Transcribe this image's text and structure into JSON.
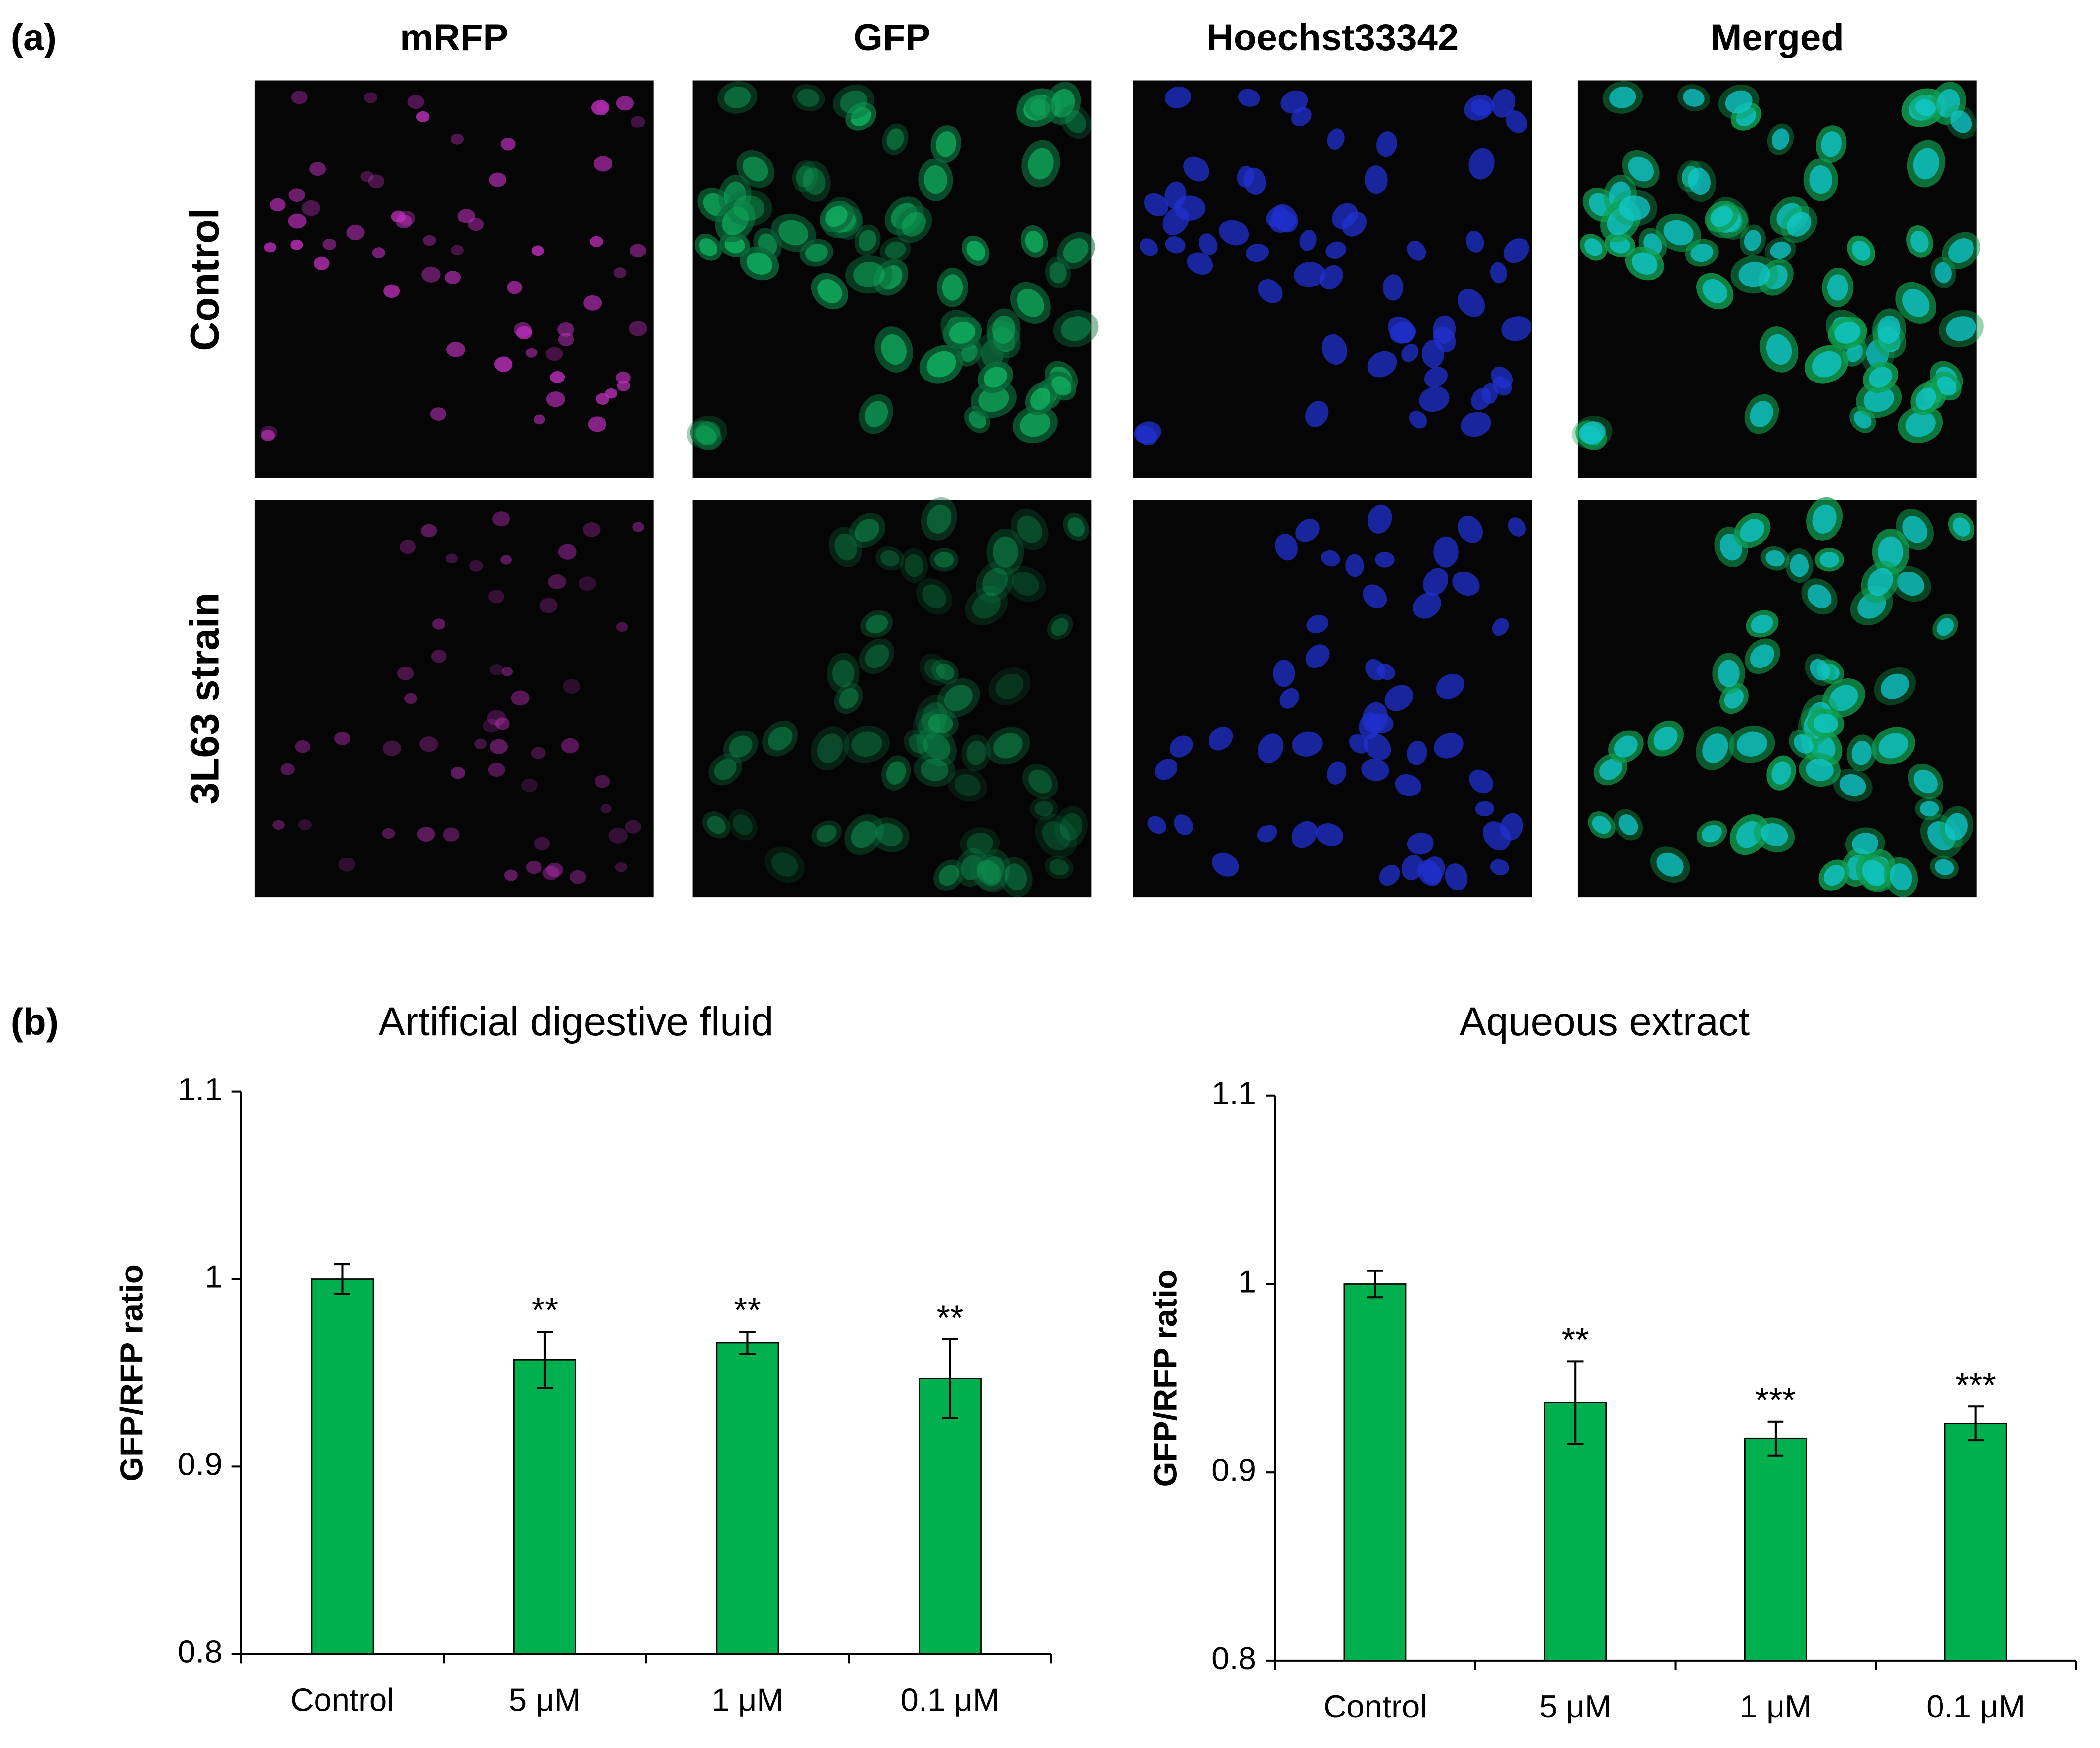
{
  "panel_a": {
    "label": "(a)",
    "columns": [
      "mRFP",
      "GFP",
      "Hoechst33342",
      "Merged"
    ],
    "rows": [
      "Control",
      "3L63 strain"
    ]
  },
  "panel_b": {
    "label": "(b)"
  },
  "chart_data": [
    {
      "type": "bar",
      "title": "Artificial digestive fluid",
      "y_label": "GFP/RFP ratio",
      "categories": [
        "Control",
        "5 μM",
        "1 μM",
        "0.1 μM"
      ],
      "values": [
        1.0,
        0.957,
        0.966,
        0.947
      ],
      "errors": [
        0.008,
        0.015,
        0.006,
        0.021
      ],
      "annotations": [
        null,
        "**",
        "**",
        "**"
      ],
      "color": "#00b04f",
      "ylim": [
        0.8,
        1.1
      ],
      "yticks": [
        0.8,
        0.9,
        1,
        1.1
      ]
    },
    {
      "type": "bar",
      "title": "Aqueous extract",
      "y_label": "GFP/RFP ratio",
      "categories": [
        "Control",
        "5 μM",
        "1 μM",
        "0.1 μM"
      ],
      "values": [
        1.0,
        0.937,
        0.918,
        0.926
      ],
      "errors": [
        0.007,
        0.022,
        0.009,
        0.009
      ],
      "annotations": [
        null,
        "**",
        "***",
        "***"
      ],
      "color": "#00b04f",
      "ylim": [
        0.8,
        1.1
      ],
      "yticks": [
        0.8,
        0.9,
        1,
        1.1
      ]
    }
  ]
}
